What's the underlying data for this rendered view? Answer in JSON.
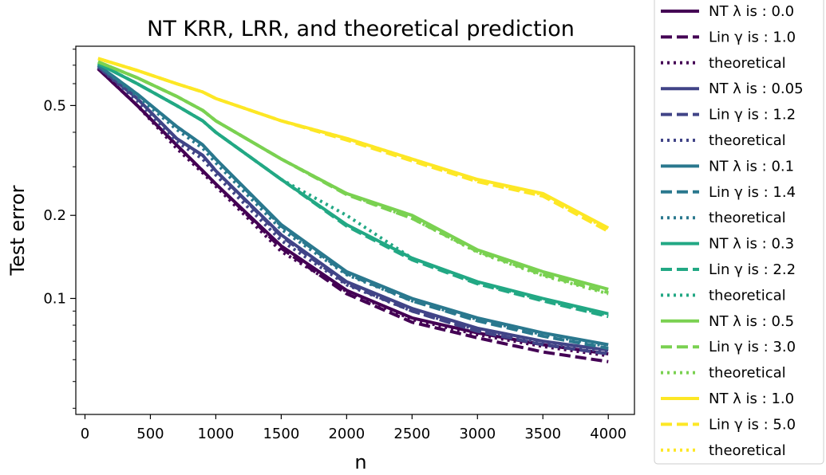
{
  "chart_data": {
    "type": "line",
    "title": "NT KRR, LRR, and theoretical prediction",
    "xlabel": "n",
    "ylabel": "Test error",
    "xlim": [
      -70,
      4200
    ],
    "ylim": [
      0.038,
      0.82
    ],
    "yscale": "log",
    "xticks": [
      0,
      500,
      1000,
      1500,
      2000,
      2500,
      3000,
      3500,
      4000
    ],
    "yticks": [
      0.1,
      0.2,
      0.5
    ],
    "ytick_labels": [
      "0.1",
      "0.2",
      "0.5"
    ],
    "grid": false,
    "legend_position": "outside right",
    "x": [
      100,
      400,
      700,
      900,
      1000,
      1500,
      2000,
      2500,
      3000,
      3500,
      4000
    ],
    "series": [
      {
        "name": "NT λ is : 0.0",
        "color": "#440154",
        "style": "solid",
        "values": [
          0.68,
          0.5,
          0.36,
          0.29,
          0.26,
          0.155,
          0.107,
          0.085,
          0.075,
          0.068,
          0.063
        ]
      },
      {
        "name": "Lin γ is : 1.0",
        "color": "#440154",
        "style": "dashed",
        "values": [
          0.68,
          0.5,
          0.36,
          0.29,
          0.26,
          0.152,
          0.104,
          0.082,
          0.072,
          0.064,
          0.059
        ]
      },
      {
        "name": "theoretical",
        "color": "#440154",
        "style": "dotted",
        "values": [
          0.68,
          0.5,
          0.35,
          0.285,
          0.255,
          0.148,
          0.106,
          0.084,
          0.074,
          0.067,
          0.062
        ]
      },
      {
        "name": "NT λ is : 0.05",
        "color": "#414487",
        "style": "solid",
        "values": [
          0.69,
          0.53,
          0.38,
          0.33,
          0.29,
          0.17,
          0.115,
          0.092,
          0.078,
          0.07,
          0.065
        ]
      },
      {
        "name": "Lin γ is : 1.2",
        "color": "#414487",
        "style": "dashed",
        "values": [
          0.69,
          0.53,
          0.38,
          0.33,
          0.29,
          0.168,
          0.113,
          0.09,
          0.076,
          0.068,
          0.063
        ]
      },
      {
        "name": "theoretical",
        "color": "#414487",
        "style": "dotted",
        "values": [
          0.69,
          0.52,
          0.37,
          0.32,
          0.28,
          0.162,
          0.112,
          0.09,
          0.077,
          0.069,
          0.064
        ]
      },
      {
        "name": "NT λ is : 0.1",
        "color": "#2a788e",
        "style": "solid",
        "values": [
          0.7,
          0.55,
          0.42,
          0.36,
          0.32,
          0.185,
          0.125,
          0.1,
          0.085,
          0.075,
          0.068
        ]
      },
      {
        "name": "Lin γ is : 1.4",
        "color": "#2a788e",
        "style": "dashed",
        "values": [
          0.7,
          0.55,
          0.42,
          0.36,
          0.32,
          0.183,
          0.123,
          0.098,
          0.083,
          0.073,
          0.066
        ]
      },
      {
        "name": "theoretical",
        "color": "#2a788e",
        "style": "dotted",
        "values": [
          0.7,
          0.54,
          0.41,
          0.35,
          0.31,
          0.178,
          0.122,
          0.098,
          0.084,
          0.074,
          0.067
        ]
      },
      {
        "name": "NT λ is : 0.3",
        "color": "#22a884",
        "style": "solid",
        "values": [
          0.71,
          0.6,
          0.5,
          0.44,
          0.4,
          0.27,
          0.185,
          0.14,
          0.115,
          0.1,
          0.088
        ]
      },
      {
        "name": "Lin γ is : 2.2",
        "color": "#22a884",
        "style": "dashed",
        "values": [
          0.71,
          0.6,
          0.5,
          0.44,
          0.4,
          0.27,
          0.183,
          0.138,
          0.113,
          0.098,
          0.086
        ]
      },
      {
        "name": "theoretical",
        "color": "#22a884",
        "style": "dotted",
        "values": [
          0.71,
          0.6,
          0.5,
          0.44,
          0.4,
          0.27,
          0.2,
          0.14,
          0.114,
          0.099,
          0.087
        ]
      },
      {
        "name": "NT λ is : 0.5",
        "color": "#7ad151",
        "style": "solid",
        "values": [
          0.72,
          0.63,
          0.54,
          0.48,
          0.44,
          0.32,
          0.24,
          0.2,
          0.15,
          0.125,
          0.108
        ]
      },
      {
        "name": "Lin γ is : 3.0",
        "color": "#7ad151",
        "style": "dashed",
        "values": [
          0.72,
          0.63,
          0.54,
          0.48,
          0.44,
          0.32,
          0.238,
          0.195,
          0.148,
          0.122,
          0.105
        ]
      },
      {
        "name": "theoretical",
        "color": "#7ad151",
        "style": "dotted",
        "values": [
          0.72,
          0.63,
          0.54,
          0.48,
          0.44,
          0.32,
          0.24,
          0.195,
          0.147,
          0.121,
          0.104
        ]
      },
      {
        "name": "NT λ is : 1.0",
        "color": "#fde725",
        "style": "solid",
        "values": [
          0.74,
          0.67,
          0.6,
          0.56,
          0.53,
          0.44,
          0.38,
          0.32,
          0.27,
          0.24,
          0.18
        ]
      },
      {
        "name": "Lin γ is : 5.0",
        "color": "#fde725",
        "style": "dashed",
        "values": [
          0.74,
          0.67,
          0.6,
          0.56,
          0.53,
          0.44,
          0.375,
          0.315,
          0.265,
          0.235,
          0.175
        ]
      },
      {
        "name": "theoretical",
        "color": "#fde725",
        "style": "dotted",
        "values": [
          0.74,
          0.67,
          0.6,
          0.56,
          0.53,
          0.44,
          0.38,
          0.32,
          0.268,
          0.238,
          0.178
        ]
      }
    ]
  }
}
